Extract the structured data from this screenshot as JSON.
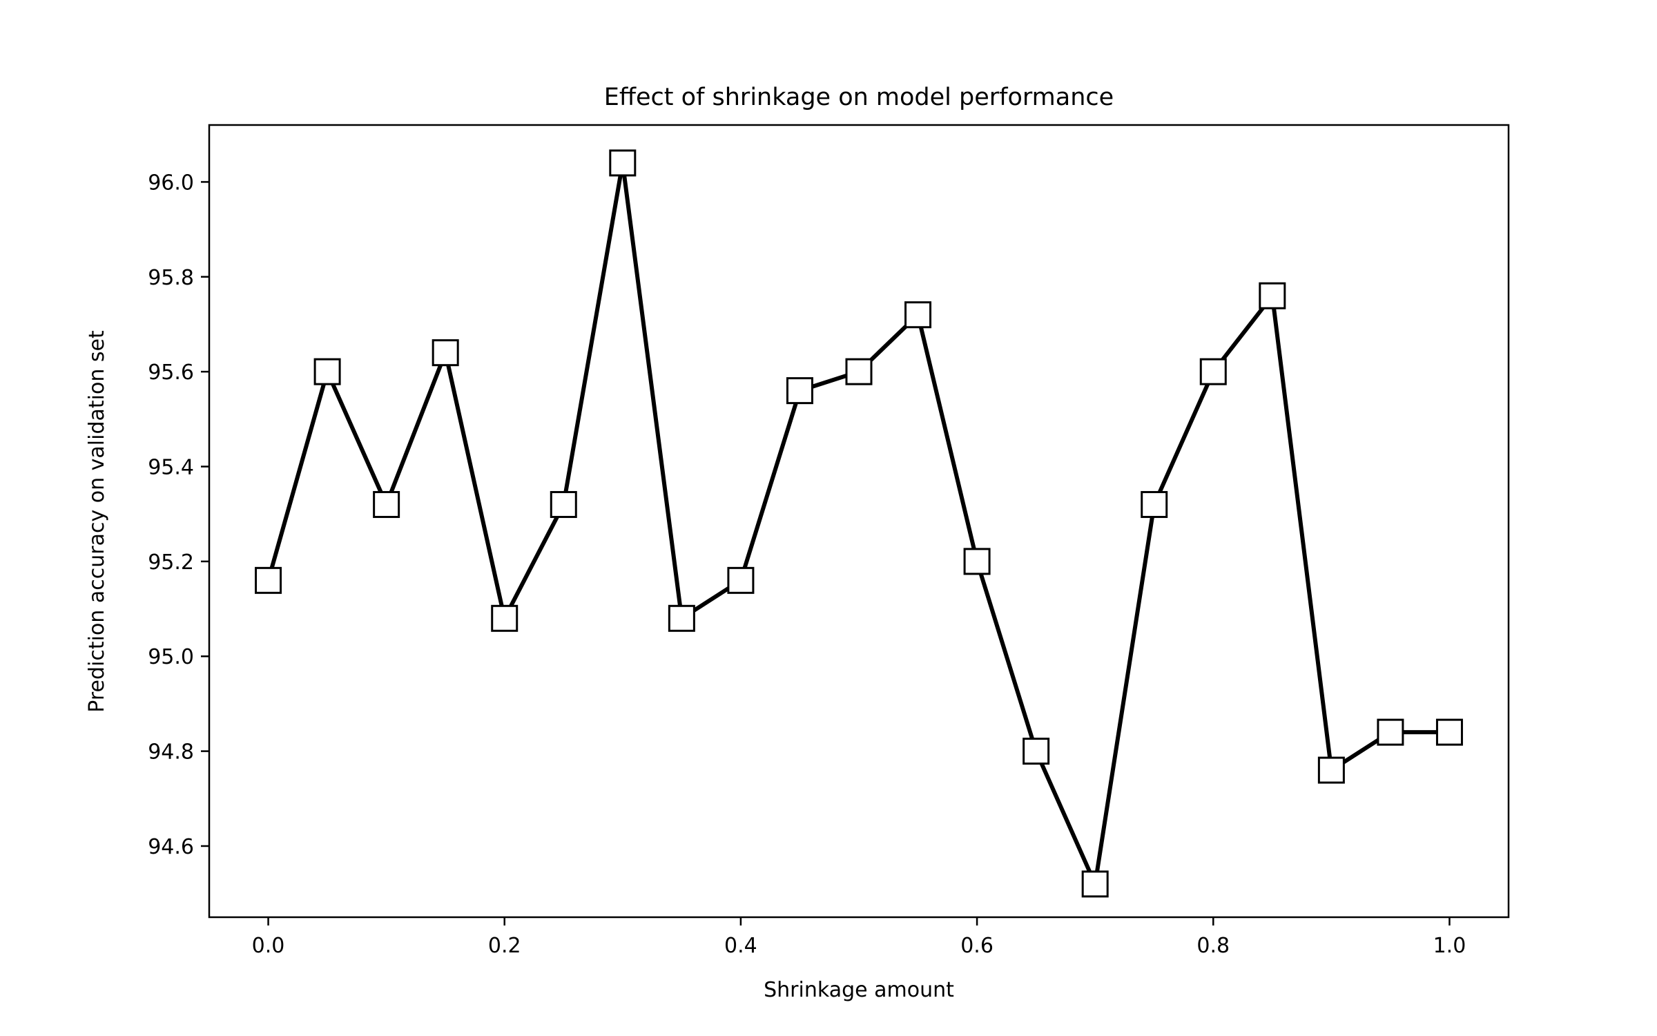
{
  "chart_data": {
    "type": "line",
    "title": "Effect of shrinkage on model performance",
    "xlabel": "Shrinkage amount",
    "ylabel": "Prediction accuracy on validation set",
    "xlim": [
      -0.05,
      1.05
    ],
    "ylim": [
      94.45,
      96.12
    ],
    "xticks": [
      0.0,
      0.2,
      0.4,
      0.6,
      0.8,
      1.0
    ],
    "xtick_labels": [
      "0.0",
      "0.2",
      "0.4",
      "0.6",
      "0.8",
      "1.0"
    ],
    "yticks": [
      94.6,
      94.8,
      95.0,
      95.2,
      95.4,
      95.6,
      95.8,
      96.0
    ],
    "ytick_labels": [
      "94.6",
      "94.8",
      "95.0",
      "95.2",
      "95.4",
      "95.6",
      "95.8",
      "96.0"
    ],
    "grid": false,
    "legend": "none",
    "line_color": "#000000",
    "marker": "square",
    "marker_fill": "#ffffff",
    "series": [
      {
        "x": [
          0.0,
          0.05,
          0.1,
          0.15,
          0.2,
          0.25,
          0.3,
          0.35,
          0.4,
          0.45,
          0.5,
          0.55,
          0.6,
          0.65,
          0.7,
          0.75,
          0.8,
          0.85,
          0.9,
          0.95,
          1.0
        ],
        "values": [
          95.16,
          95.6,
          95.32,
          95.64,
          95.08,
          95.32,
          96.04,
          95.08,
          95.16,
          95.56,
          95.6,
          95.72,
          95.2,
          94.8,
          94.52,
          95.32,
          95.6,
          95.76,
          94.76,
          94.84,
          94.84
        ]
      }
    ]
  }
}
